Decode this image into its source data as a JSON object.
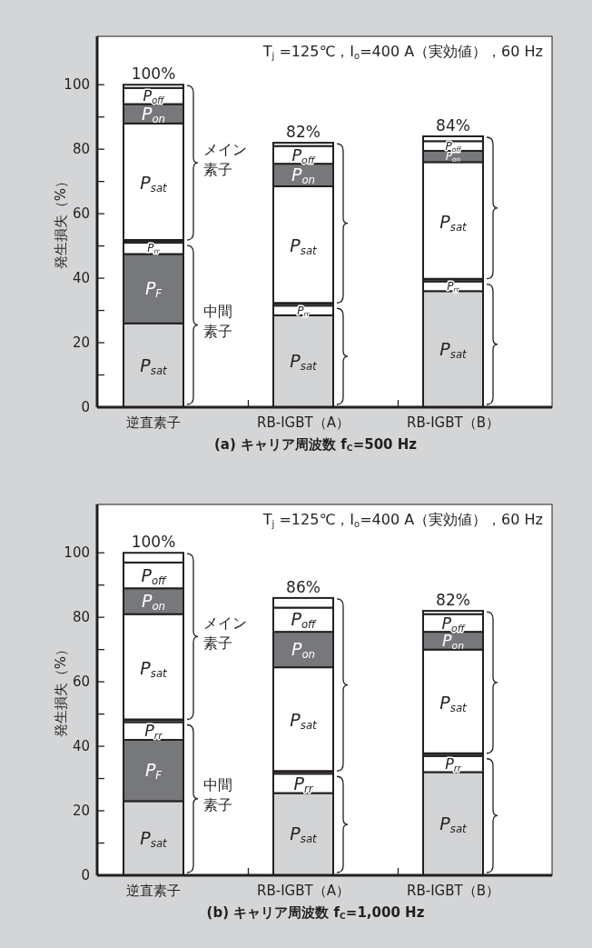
{
  "chart_data": [
    {
      "type": "bar",
      "stacked": true,
      "xlabel": "(a) キャリア周波数  f$_{C}$=500 Hz",
      "ylabel": "発生損失（%）",
      "categories": [
        "逆直素子",
        "RB-IGBT（A）",
        "RB-IGBT（B）"
      ],
      "ylim": [
        0,
        115
      ],
      "yticks": [
        0,
        {
          "value": 10,
          "label": null
        },
        20,
        {
          "value": 30,
          "label": null
        },
        40,
        {
          "value": 50,
          "label": null
        },
        60,
        {
          "value": 70,
          "label": null
        },
        80,
        {
          "value": 90,
          "label": null
        },
        100
      ],
      "grid": false,
      "totals": [
        "100%",
        "82%",
        "84%"
      ],
      "annotations": [
        "T$_{j}$ =125℃，I$_{o}$=400 A（実効値），60 Hz",
        "メイン素子",
        "中間素子"
      ],
      "series": [
        {
          "name": "P$_{sat}$",
          "color": "#d2d3d5",
          "values": [
            26,
            28.5,
            36
          ]
        },
        {
          "name": "P$_{F}$",
          "color": "#77787b",
          "values": [
            21.5,
            0,
            0
          ]
        },
        {
          "name": "P$_{rr}$",
          "color": "#ffffff",
          "values": [
            3.5,
            3,
            3
          ]
        },
        {
          "name": "P$_{sat}$",
          "color": "#ffffff",
          "values": [
            37,
            37,
            37
          ]
        },
        {
          "name": "P$_{on}$",
          "color": "#77787b",
          "values": [
            6,
            7,
            3.5
          ]
        },
        {
          "name": "P$_{off}$",
          "color": "#ffffff",
          "values": [
            5,
            5.5,
            3
          ]
        },
        {
          "color": "#ffffff",
          "values": [
            1,
            1,
            1.5
          ]
        }
      ]
    },
    {
      "type": "bar",
      "stacked": true,
      "xlabel": "(b) キャリア周波数  f$_{C}$=1,000 Hz",
      "ylabel": "発生損失（%）",
      "categories": [
        "逆直素子",
        "RB-IGBT（A）",
        "RB-IGBT（B）"
      ],
      "ylim": [
        0,
        115
      ],
      "yticks": [
        0,
        {
          "value": 10,
          "label": null
        },
        20,
        {
          "value": 30,
          "label": null
        },
        40,
        {
          "value": 50,
          "label": null
        },
        60,
        {
          "value": 70,
          "label": null
        },
        80,
        {
          "value": 90,
          "label": null
        },
        100
      ],
      "grid": false,
      "totals": [
        "100%",
        "86%",
        "82%"
      ],
      "annotations": [
        "T$_{j}$ =125℃，I$_{o}$=400 A（実効値），60 Hz",
        "メイン素子",
        "中間素子"
      ],
      "series": [
        {
          "name": "P$_{sat}$",
          "color": "#d2d3d5",
          "values": [
            23,
            25.5,
            32
          ]
        },
        {
          "name": "P$_{F}$",
          "color": "#77787b",
          "values": [
            19,
            0,
            0
          ]
        },
        {
          "name": "P$_{rr}$",
          "color": "#ffffff",
          "values": [
            5.5,
            6,
            5
          ]
        },
        {
          "name": "P$_{sat}$",
          "color": "#ffffff",
          "values": [
            33.5,
            33,
            33
          ]
        },
        {
          "name": "P$_{on}$",
          "color": "#77787b",
          "values": [
            8,
            11,
            5.5
          ]
        },
        {
          "name": "P$_{off}$",
          "color": "#ffffff",
          "values": [
            8,
            7.5,
            5.5
          ]
        },
        {
          "color": "#ffffff",
          "values": [
            3,
            3,
            1
          ]
        }
      ]
    }
  ]
}
